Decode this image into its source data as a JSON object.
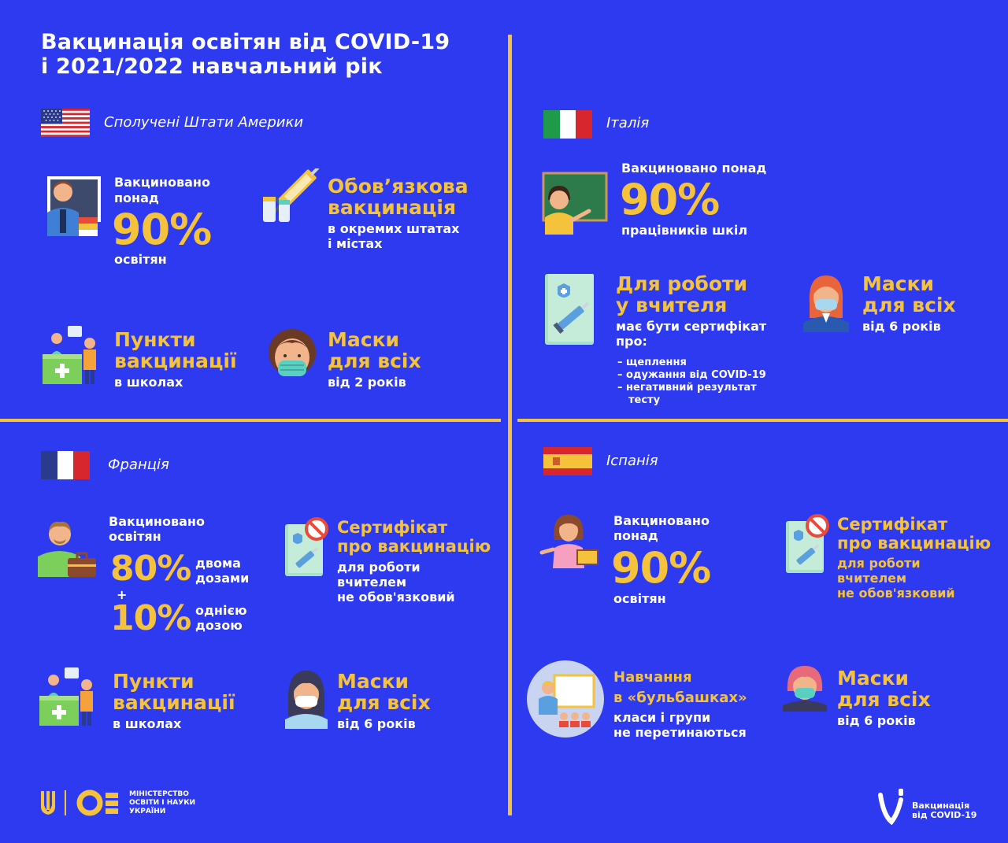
{
  "header": {
    "title_line1": "Вакцинація освітян від COVID-19",
    "title_line2": "і 2021/2022 навчальний рік"
  },
  "colors": {
    "background": "#2e3af0",
    "accent": "#f5c33b",
    "text": "#ffffff"
  },
  "usa": {
    "country": "Сполучені Штати Америки",
    "vaccinated": {
      "pre1": "Вакциновано",
      "pre2": "понад",
      "value": "90%",
      "post": "освітян"
    },
    "mandatory": {
      "title1": "Обов’язкова",
      "title2": "вакцинація",
      "sub1": "в окремих штатах",
      "sub2": "і містах"
    },
    "points": {
      "title1": "Пункти",
      "title2": "вакцинації",
      "sub": "в школах"
    },
    "masks": {
      "title1": "Маски",
      "title2": "для всіх",
      "sub": "від 2 років"
    }
  },
  "italy": {
    "country": "Італія",
    "vaccinated": {
      "pre": "Вакциновано понад",
      "value": "90%",
      "post": "працівників шкіл"
    },
    "certificate": {
      "title1": "Для роботи",
      "title2": "у вчителя",
      "sub1": "має бути сертифікат",
      "sub2": "про:",
      "items": [
        "– щеплення",
        "– одужання від COVID-19",
        "– негативний результат",
        "тесту"
      ]
    },
    "masks": {
      "title1": "Маски",
      "title2": "для всіх",
      "sub": "від 6 років"
    }
  },
  "france": {
    "country": "Франція",
    "vaccinated": {
      "pre1": "Вакциновано",
      "pre2": "освітян",
      "value1": "80%",
      "desc1a": "двома",
      "desc1b": "дозами",
      "plus": "+",
      "value2": "10%",
      "desc2a": "однією",
      "desc2b": "дозою"
    },
    "certificate": {
      "title1": "Сертифікат",
      "title2": "про вакцинацію",
      "sub1": "для роботи",
      "sub2": "вчителем",
      "sub3": "не обов'язковий"
    },
    "points": {
      "title1": "Пункти",
      "title2": "вакцинації",
      "sub": "в школах"
    },
    "masks": {
      "title1": "Маски",
      "title2": "для всіх",
      "sub": "від 6 років"
    }
  },
  "spain": {
    "country": "Іспанія",
    "vaccinated": {
      "pre1": "Вакциновано",
      "pre2": "понад",
      "value": "90%",
      "post": "освітян"
    },
    "certificate": {
      "title1": "Сертифікат",
      "title2": "про вакцинацію",
      "sub1": "для роботи",
      "sub2": "вчителем",
      "sub3": "не обов'язковий"
    },
    "bubbles": {
      "title1": "Навчання",
      "title2": "в «бульбашках»",
      "sub1": "класи і групи",
      "sub2": "не перетинаються"
    },
    "masks": {
      "title1": "Маски",
      "title2": "для всіх",
      "sub": "від 6 років"
    }
  },
  "footer": {
    "ministry1": "МІНІСТЕРСТВО",
    "ministry2": "ОСВІТИ І НАУКИ",
    "ministry3": "УКРАЇНИ",
    "campaign1": "Вакцинація",
    "campaign2": "від COVID-19"
  }
}
